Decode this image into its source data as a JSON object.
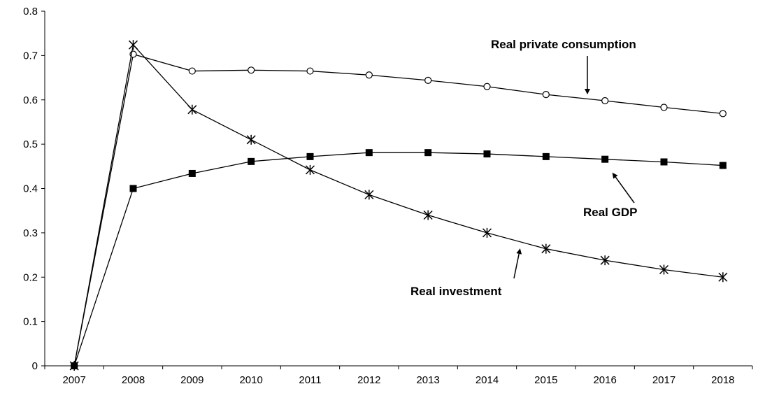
{
  "chart_data": {
    "type": "line",
    "title": "",
    "xlabel": "",
    "ylabel": "",
    "x": [
      "2007",
      "2008",
      "2009",
      "2010",
      "2011",
      "2012",
      "2013",
      "2014",
      "2015",
      "2016",
      "2017",
      "2018"
    ],
    "ylim": [
      0,
      0.8
    ],
    "yticks": [
      "0",
      "0.1",
      "0.2",
      "0.3",
      "0.4",
      "0.5",
      "0.6",
      "0.7",
      "0.8"
    ],
    "grid": false,
    "legend": "none",
    "series": [
      {
        "name": "Real private consumption",
        "marker": "circle-open",
        "values": [
          0,
          0.703,
          0.665,
          0.667,
          0.665,
          0.656,
          0.644,
          0.63,
          0.612,
          0.598,
          0.583,
          0.569
        ]
      },
      {
        "name": "Real GDP",
        "marker": "square-filled",
        "values": [
          0,
          0.4,
          0.434,
          0.461,
          0.472,
          0.481,
          0.481,
          0.478,
          0.472,
          0.466,
          0.46,
          0.452
        ]
      },
      {
        "name": "Real investment",
        "marker": "asterisk",
        "values": [
          0,
          0.724,
          0.578,
          0.51,
          0.442,
          0.386,
          0.34,
          0.3,
          0.264,
          0.238,
          0.217,
          0.2
        ]
      }
    ],
    "annotations": [
      {
        "text": "Real private consumption",
        "series": "Real private consumption"
      },
      {
        "text": "Real GDP",
        "series": "Real GDP"
      },
      {
        "text": "Real investment",
        "series": "Real investment"
      }
    ]
  }
}
